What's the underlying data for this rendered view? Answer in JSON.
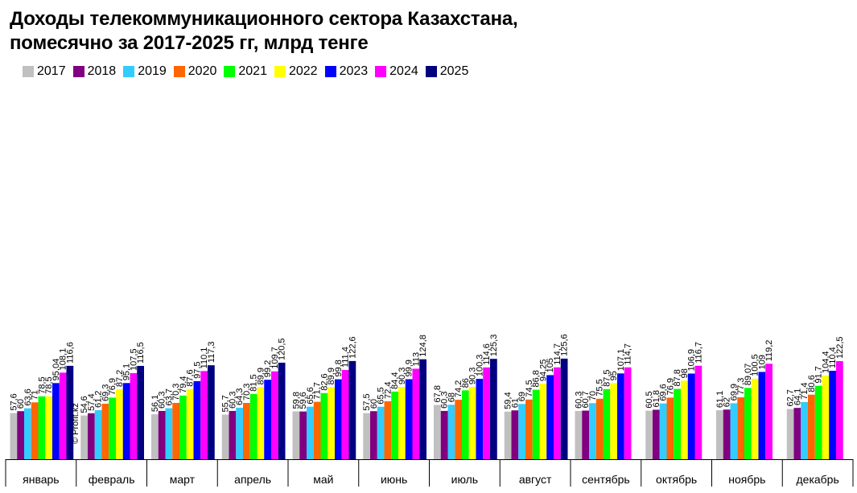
{
  "title_lines": [
    "Доходы телекоммуникационного сектора Казахстана,",
    "помесячно за 2017-2025 гг, млрд тенге"
  ],
  "watermark": "© Profit.kz",
  "colors": {
    "2017": "#c0c0c0",
    "2018": "#800080",
    "2019": "#33ccff",
    "2020": "#ff6600",
    "2021": "#00ff00",
    "2022": "#ffff00",
    "2023": "#0000ff",
    "2024": "#ff00ff",
    "2025": "#000080"
  },
  "chart_data": {
    "type": "bar",
    "title": "Доходы телекоммуникационного сектора Казахстана, помесячно за 2017-2025 гг, млрд тенге",
    "xlabel": "",
    "ylabel": "",
    "ylim": [
      0,
      140
    ],
    "grid": false,
    "legend_position": "top-left",
    "categories": [
      "январь",
      "февраль",
      "март",
      "апрель",
      "май",
      "июнь",
      "июль",
      "август",
      "сентябрь",
      "октябрь",
      "ноябрь",
      "декабрь"
    ],
    "series": [
      {
        "name": "2017",
        "values": [
          57.6,
          54.6,
          56.1,
          55.7,
          59.8,
          57.5,
          67.8,
          59.4,
          60.3,
          60.5,
          61.1,
          62.7
        ],
        "labels": [
          "57,6",
          "54,6",
          "56,1",
          "55,7",
          "59,8",
          "57,5",
          "67,8",
          "59,4",
          "60,3",
          "60,5",
          "61,1",
          "62,7"
        ]
      },
      {
        "name": "2018",
        "values": [
          60,
          57.4,
          60.3,
          60.3,
          59.6,
          60,
          60.3,
          61,
          60.7,
          61.8,
          62,
          64.1
        ],
        "labels": [
          "60",
          "57,4",
          "60,3",
          "60,3",
          "59,6",
          "60",
          "60,3",
          "61",
          "60,7",
          "61,8",
          "62",
          "64,1"
        ]
      },
      {
        "name": "2019",
        "values": [
          63.6,
          61.2,
          63.7,
          64.3,
          65.6,
          65.5,
          68,
          69,
          70,
          69.6,
          69.9,
          71.4
        ],
        "labels": [
          "63,6",
          "61,2",
          "63,7",
          "64,3",
          "65,6",
          "65,5",
          "68",
          "69",
          "70",
          "69,6",
          "69,9",
          "71,4"
        ]
      },
      {
        "name": "2020",
        "values": [
          71,
          69.3,
          70.3,
          70.3,
          71.7,
          72.4,
          74.2,
          74.5,
          75.5,
          76.9,
          77.3,
          80.6
        ],
        "labels": [
          "71",
          "69,3",
          "70,3",
          "70,3",
          "71,7",
          "72,4",
          "74,2",
          "74,5",
          "75,5",
          "76,9",
          "77,3",
          "80,6"
        ]
      },
      {
        "name": "2021",
        "values": [
          78.5,
          76.9,
          79.4,
          81.5,
          82.6,
          84.4,
          86,
          86.8,
          87.5,
          87.8,
          89.07,
          91.7
        ],
        "labels": [
          "78,5",
          "76,9",
          "79,4",
          "81,5",
          "82,6",
          "84,4",
          "86",
          "86,8",
          "87,5",
          "87,8",
          "89,07",
          "91,7"
        ]
      },
      {
        "name": "2022",
        "values": [
          78.5,
          87.2,
          87.6,
          89.9,
          89.9,
          90.3,
          90.3,
          94.25,
          95,
          98,
          100.5,
          104.4
        ],
        "labels": [
          "78,5",
          "87,2",
          "87,6",
          "89,9",
          "89,9",
          "90,3",
          "90,3",
          "94,25",
          "95",
          "98",
          "100,5",
          "104,4"
        ]
      },
      {
        "name": "2023",
        "values": [
          95.04,
          95.1,
          97.5,
          99.2,
          99.8,
          99.9,
          100.3,
          105,
          107.1,
          106.9,
          109,
          110.4
        ],
        "labels": [
          "95,04",
          "95,1",
          "97,5",
          "99,2",
          "99,8",
          "99,9",
          "100,3",
          "105",
          "107,1",
          "106,9",
          "109",
          "110,4"
        ]
      },
      {
        "name": "2024",
        "values": [
          108.1,
          107.5,
          110.1,
          109.7,
          111.4,
          113,
          114.6,
          114.7,
          114.7,
          116.7,
          119.2,
          122.5
        ],
        "labels": [
          "108,1",
          "107,5",
          "110,1",
          "109,7",
          "111,4",
          "113",
          "114,6",
          "114,7",
          "114,7",
          "116,7",
          "119,2",
          "122,5"
        ]
      },
      {
        "name": "2025",
        "values": [
          116.6,
          116.5,
          117.3,
          120.5,
          122.6,
          124.8,
          125.3,
          125.6,
          null,
          null,
          null,
          null
        ],
        "labels": [
          "116,6",
          "116,5",
          "117,3",
          "120,5",
          "122,6",
          "124,8",
          "125,3",
          "125,6",
          "",
          "",
          "",
          ""
        ]
      }
    ]
  }
}
